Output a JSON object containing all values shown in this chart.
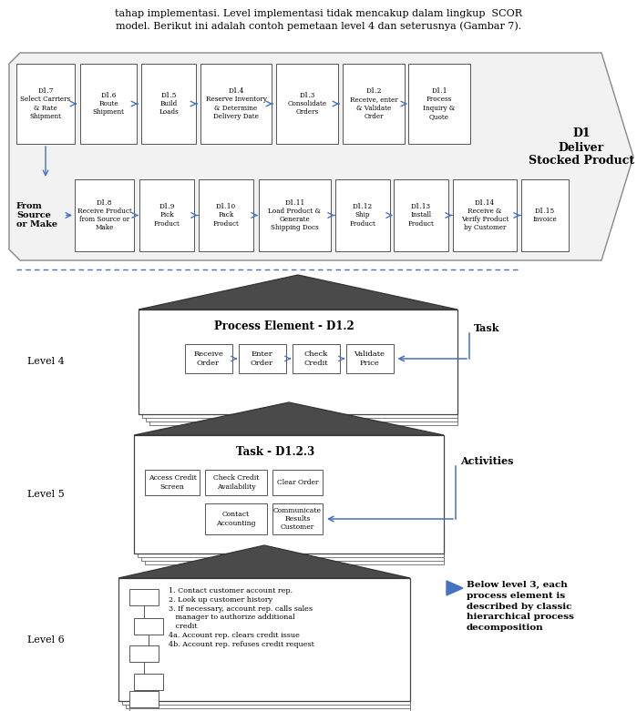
{
  "bg_color": "#ffffff",
  "blue_arrow": "#4472C4",
  "dashed_line_color": "#4472C4",
  "text_top": "tahap implementasi. Level implementasi tidak mencakup dalam lingkup  SCOR\nmodel. Berikut ini adalah contoh pemetaan level 4 dan seterusnya (Gambar 7).",
  "top_row_labels": [
    "D1.7\nSelect Carriers\n& Rate\nShipment",
    "D1.6\nRoute\nShipment",
    "D1.5\nBuild\nLoads",
    "D1.4\nReserve Inventory\n& Determine\nDelivery Date",
    "D1.3\nConsolidate\nOrders",
    "D1.2\nReceive, enter\n& Validate\nOrder",
    "D1.1\nProcess\nInquiry &\nQuote"
  ],
  "d1_label": "D1\nDeliver\nStocked Product",
  "bottom_row_labels": [
    "D1.8\nReceive Product\nfrom Source or\nMake",
    "D1.9\nPick\nProduct",
    "D1.10\nPack\nProduct",
    "D1.11\nLoad Product &\nGenerate\nShipping Docs",
    "D1.12\nShip\nProduct",
    "D1.13\nInstall\nProduct",
    "D1.14\nReceive &\nVerify Product\nby Customer",
    "D1.15\nInvoice"
  ],
  "from_label": "From\nSource\nor Make",
  "level4_label": "Level 4",
  "level5_label": "Level 5",
  "level6_label": "Level 6",
  "pe_title": "Process Element - D1.2",
  "pe_boxes": [
    "Receive\nOrder",
    "Enter\nOrder",
    "Check\nCredit",
    "Validate\nPrice"
  ],
  "task_label": "Task",
  "task_title": "Task - D1.2.3",
  "task_boxes_row1": [
    "Access Credit\nScreen",
    "Check Credit\nAvailability",
    "Clear Order"
  ],
  "task_boxes_row2": [
    "Contact\nAccounting",
    "Communicate\nResults\nCustomer"
  ],
  "activities_label": "Activities",
  "level6_text": "1. Contact customer account rep.\n2. Look up customer history\n3. If necessary, account rep. calls sales\n   manager to authorize additional\n   credit\n4a. Account rep. clears credit issue\n4b. Account rep. refuses credit request",
  "below_level3_text": "Below level 3, each\nprocess element is\ndescribed by classic\nhierarchical process\ndecomposition"
}
